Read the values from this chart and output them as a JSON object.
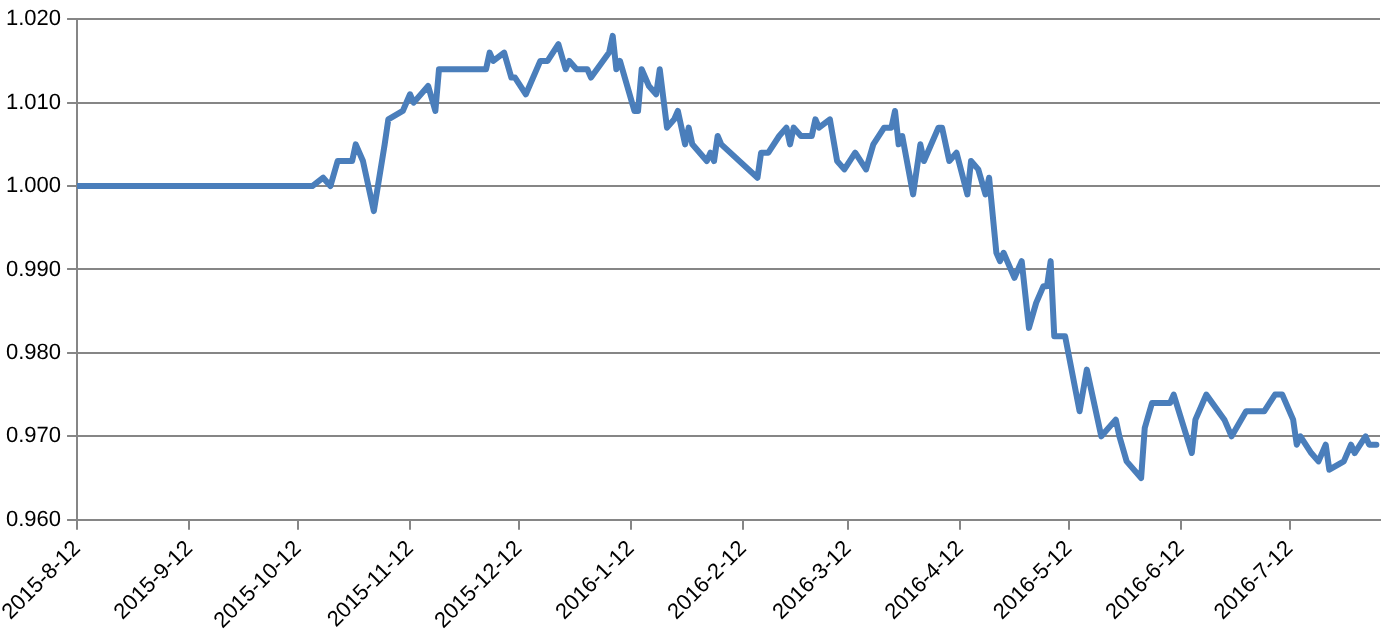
{
  "chart_data": {
    "type": "line",
    "grid": "y",
    "legend": false,
    "marker": "none",
    "line_style": "solid",
    "xlim": [
      "2015-08-12",
      "2016-08-06"
    ],
    "xticks": [
      {
        "value": "2015-08-12",
        "label": "2015-8-12"
      },
      {
        "value": "2015-09-12",
        "label": "2015-9-12"
      },
      {
        "value": "2015-10-12",
        "label": "2015-10-12"
      },
      {
        "value": "2015-11-12",
        "label": "2015-11-12"
      },
      {
        "value": "2015-12-12",
        "label": "2015-12-12"
      },
      {
        "value": "2016-01-12",
        "label": "2016-1-12"
      },
      {
        "value": "2016-02-12",
        "label": "2016-2-12"
      },
      {
        "value": "2016-03-12",
        "label": "2016-3-12"
      },
      {
        "value": "2016-04-12",
        "label": "2016-4-12"
      },
      {
        "value": "2016-05-12",
        "label": "2016-5-12"
      },
      {
        "value": "2016-06-12",
        "label": "2016-6-12"
      },
      {
        "value": "2016-07-12",
        "label": "2016-7-12"
      }
    ],
    "ylim": [
      0.96,
      1.02
    ],
    "yticks": [
      {
        "value": 0.96,
        "label": "0.960"
      },
      {
        "value": 0.97,
        "label": "0.970"
      },
      {
        "value": 0.98,
        "label": "0.980"
      },
      {
        "value": 0.99,
        "label": "0.990"
      },
      {
        "value": 1.0,
        "label": "1.000"
      },
      {
        "value": 1.01,
        "label": "1.010"
      },
      {
        "value": 1.02,
        "label": "1.020"
      }
    ],
    "series": [
      {
        "color": "#4a7ebb",
        "x": [
          "2015-08-12",
          "2015-10-16",
          "2015-10-19",
          "2015-10-21",
          "2015-10-23",
          "2015-10-27",
          "2015-10-28",
          "2015-10-30",
          "2015-11-02",
          "2015-11-05",
          "2015-11-06",
          "2015-11-10",
          "2015-11-12",
          "2015-11-13",
          "2015-11-17",
          "2015-11-19",
          "2015-11-20",
          "2015-12-03",
          "2015-12-04",
          "2015-12-05",
          "2015-12-08",
          "2015-12-10",
          "2015-12-11",
          "2015-12-14",
          "2015-12-18",
          "2015-12-20",
          "2015-12-23",
          "2015-12-25",
          "2015-12-26",
          "2015-12-28",
          "2015-12-31",
          "2016-01-01",
          "2016-01-06",
          "2016-01-07",
          "2016-01-08",
          "2016-01-09",
          "2016-01-11",
          "2016-01-13",
          "2016-01-14",
          "2016-01-15",
          "2016-01-17",
          "2016-01-19",
          "2016-01-20",
          "2016-01-22",
          "2016-01-24",
          "2016-01-25",
          "2016-01-27",
          "2016-01-28",
          "2016-01-29",
          "2016-02-02",
          "2016-02-03",
          "2016-02-04",
          "2016-02-05",
          "2016-02-06",
          "2016-02-16",
          "2016-02-17",
          "2016-02-19",
          "2016-02-22",
          "2016-02-24",
          "2016-02-25",
          "2016-02-26",
          "2016-02-28",
          "2016-03-02",
          "2016-03-03",
          "2016-03-04",
          "2016-03-07",
          "2016-03-09",
          "2016-03-11",
          "2016-03-14",
          "2016-03-17",
          "2016-03-19",
          "2016-03-22",
          "2016-03-24",
          "2016-03-25",
          "2016-03-26",
          "2016-03-27",
          "2016-03-30",
          "2016-04-01",
          "2016-04-02",
          "2016-04-06",
          "2016-04-07",
          "2016-04-09",
          "2016-04-11",
          "2016-04-14",
          "2016-04-15",
          "2016-04-17",
          "2016-04-19",
          "2016-04-20",
          "2016-04-22",
          "2016-04-23",
          "2016-04-24",
          "2016-04-27",
          "2016-04-29",
          "2016-05-01",
          "2016-05-03",
          "2016-05-05",
          "2016-05-06",
          "2016-05-07",
          "2016-05-08",
          "2016-05-11",
          "2016-05-15",
          "2016-05-17",
          "2016-05-21",
          "2016-05-25",
          "2016-05-26",
          "2016-05-28",
          "2016-06-01",
          "2016-06-02",
          "2016-06-04",
          "2016-06-09",
          "2016-06-10",
          "2016-06-15",
          "2016-06-16",
          "2016-06-18",
          "2016-06-19",
          "2016-06-24",
          "2016-06-26",
          "2016-06-30",
          "2016-07-05",
          "2016-07-08",
          "2016-07-10",
          "2016-07-13",
          "2016-07-14",
          "2016-07-15",
          "2016-07-18",
          "2016-07-20",
          "2016-07-22",
          "2016-07-23",
          "2016-07-27",
          "2016-07-29",
          "2016-07-30",
          "2016-08-02",
          "2016-08-03",
          "2016-08-05"
        ],
        "values": [
          1.0,
          1.0,
          1.001,
          1.0,
          1.003,
          1.003,
          1.005,
          1.003,
          0.997,
          1.005,
          1.008,
          1.009,
          1.011,
          1.01,
          1.012,
          1.009,
          1.014,
          1.014,
          1.016,
          1.015,
          1.016,
          1.013,
          1.013,
          1.011,
          1.015,
          1.015,
          1.017,
          1.014,
          1.015,
          1.014,
          1.014,
          1.013,
          1.016,
          1.018,
          1.014,
          1.015,
          1.012,
          1.009,
          1.009,
          1.014,
          1.012,
          1.011,
          1.014,
          1.007,
          1.008,
          1.009,
          1.005,
          1.007,
          1.005,
          1.003,
          1.004,
          1.003,
          1.006,
          1.005,
          1.001,
          1.004,
          1.004,
          1.006,
          1.007,
          1.005,
          1.007,
          1.006,
          1.006,
          1.008,
          1.007,
          1.008,
          1.003,
          1.002,
          1.004,
          1.002,
          1.005,
          1.007,
          1.007,
          1.009,
          1.005,
          1.006,
          0.999,
          1.005,
          1.003,
          1.007,
          1.007,
          1.003,
          1.004,
          0.999,
          1.003,
          1.002,
          0.999,
          1.001,
          0.992,
          0.991,
          0.992,
          0.989,
          0.991,
          0.983,
          0.986,
          0.988,
          0.988,
          0.991,
          0.982,
          0.982,
          0.973,
          0.978,
          0.97,
          0.972,
          0.97,
          0.967,
          0.965,
          0.971,
          0.974,
          0.974,
          0.975,
          0.968,
          0.972,
          0.974,
          0.975,
          0.972,
          0.97,
          0.973,
          0.973,
          0.975,
          0.975,
          0.972,
          0.969,
          0.97,
          0.968,
          0.967,
          0.969,
          0.966,
          0.967,
          0.969,
          0.968,
          0.97,
          0.969,
          0.969
        ]
      }
    ]
  }
}
